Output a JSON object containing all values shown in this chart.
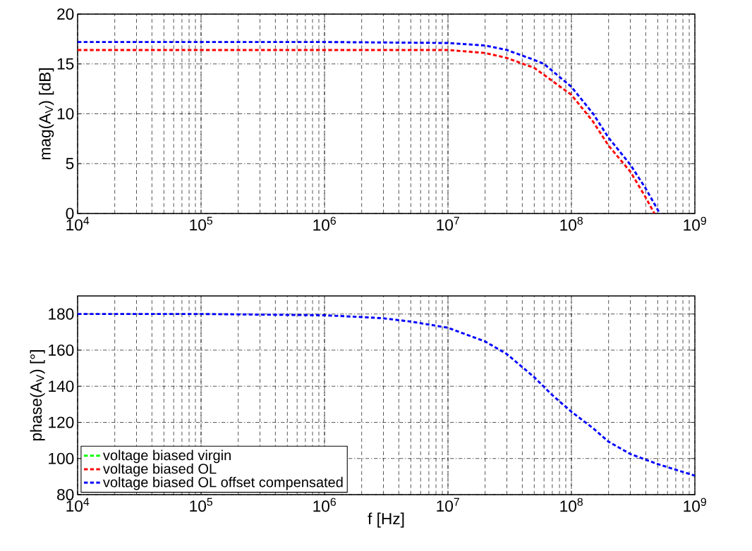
{
  "chart_data": [
    {
      "type": "line",
      "ylabel": "mag(A$_{V}$) [dB]",
      "log": "x",
      "grid": true,
      "line_style": "dashed",
      "xlim": [
        10000,
        1000000000
      ],
      "ylim": [
        0,
        20
      ],
      "xticks": [
        {
          "value": 10000,
          "label": "10$^{4}$"
        },
        {
          "value": 100000,
          "label": "10$^{5}$"
        },
        {
          "value": 1000000,
          "label": "10$^{6}$"
        },
        {
          "value": 10000000,
          "label": "10$^{7}$"
        },
        {
          "value": 100000000,
          "label": "10$^{8}$"
        },
        {
          "value": 1000000000,
          "label": "10$^{9}$"
        }
      ],
      "yticks": [
        0,
        5,
        10,
        15,
        20
      ],
      "series": [
        {
          "color": "#ff0000",
          "x": [
            10000,
            100000,
            1000000,
            10000000,
            20000000,
            30000000,
            50000000,
            60000000,
            100000000,
            150000000,
            200000000,
            300000000,
            400000000,
            470000000
          ],
          "values": [
            16.4,
            16.4,
            16.4,
            16.4,
            16.1,
            15.6,
            14.6,
            13.9,
            11.9,
            9.2,
            6.8,
            4.2,
            1.6,
            0
          ]
        },
        {
          "color": "#0000ff",
          "x": [
            10000,
            100000,
            1000000,
            10000000,
            20000000,
            30000000,
            50000000,
            60000000,
            100000000,
            150000000,
            200000000,
            300000000,
            400000000,
            520000000
          ],
          "values": [
            17.2,
            17.2,
            17.2,
            17.1,
            16.85,
            16.4,
            15.4,
            15.0,
            12.7,
            10.0,
            7.6,
            4.9,
            2.5,
            0
          ]
        }
      ]
    },
    {
      "type": "line",
      "xlabel": "f [Hz]",
      "ylabel": "phase(A$_{V}$) [°]",
      "log": "x",
      "grid": true,
      "line_style": "dashed",
      "legend": "bottom left",
      "xlim": [
        10000,
        1000000000
      ],
      "ylim": [
        80,
        190
      ],
      "xticks": [
        {
          "value": 10000,
          "label": "10$^{4}$"
        },
        {
          "value": 100000,
          "label": "10$^{5}$"
        },
        {
          "value": 1000000,
          "label": "10$^{6}$"
        },
        {
          "value": 10000000,
          "label": "10$^{7}$"
        },
        {
          "value": 100000000,
          "label": "10$^{8}$"
        },
        {
          "value": 1000000000,
          "label": "10$^{9}$"
        }
      ],
      "yticks": [
        80,
        100,
        120,
        140,
        160,
        180
      ],
      "series": [
        {
          "name": "voltage biased virgin",
          "color": "#00ff00",
          "values": [
            null
          ]
        },
        {
          "name": "voltage biased OL",
          "color": "#ff0000",
          "values": [
            null
          ]
        },
        {
          "name": "voltage biased OL offset compensated",
          "color": "#0000ff",
          "x": [
            10000,
            100000,
            1000000,
            2000000,
            3000000,
            5000000,
            10000000,
            20000000,
            30000000,
            50000000,
            70000000,
            100000000,
            150000000,
            200000000,
            300000000,
            500000000,
            1000000000
          ],
          "values": [
            180,
            180,
            179.3,
            178.3,
            177.6,
            175.8,
            172.4,
            164.8,
            157.8,
            145,
            135.1,
            125.9,
            116.7,
            109.3,
            102.5,
            96.9,
            90.5
          ]
        }
      ]
    }
  ]
}
